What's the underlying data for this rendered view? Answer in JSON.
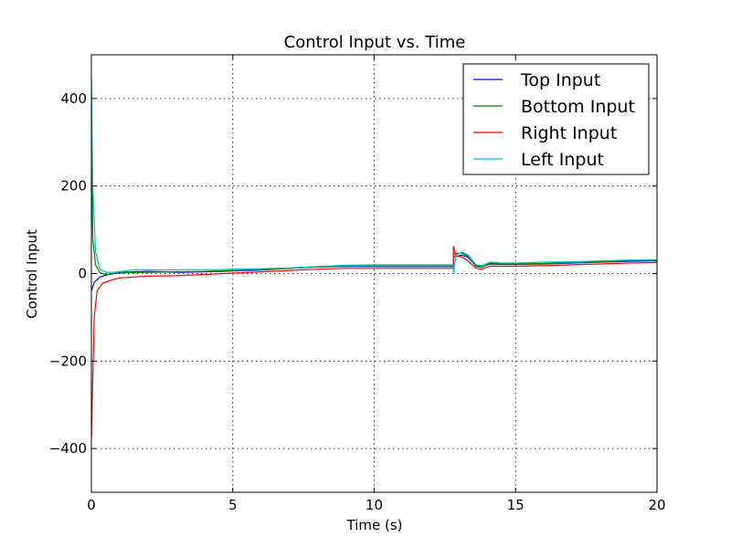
{
  "chart_data": {
    "type": "line",
    "title": "Control Input vs. Time",
    "xlabel": "Time (s)",
    "ylabel": "Control Input",
    "xlim": [
      0,
      20
    ],
    "ylim": [
      -500,
      500
    ],
    "xticks": [
      0,
      5,
      10,
      15,
      20
    ],
    "yticks": [
      -400,
      -200,
      0,
      200,
      400
    ],
    "xtick_labels": [
      "0",
      "5",
      "10",
      "15",
      "20"
    ],
    "ytick_labels": [
      "−400",
      "−200",
      "0",
      "200",
      "400"
    ],
    "grid": true,
    "legend_position": "top-right",
    "series": [
      {
        "name": "Top Input",
        "color": "#0000ff",
        "points": [
          [
            0,
            -40
          ],
          [
            0.1,
            -20
          ],
          [
            0.3,
            -8
          ],
          [
            0.6,
            -2
          ],
          [
            1,
            2
          ],
          [
            1.5,
            4
          ],
          [
            2,
            5
          ],
          [
            3,
            3
          ],
          [
            4,
            4
          ],
          [
            5,
            6
          ],
          [
            6,
            8
          ],
          [
            7,
            12
          ],
          [
            8,
            15
          ],
          [
            9,
            16
          ],
          [
            10,
            16
          ],
          [
            11,
            16
          ],
          [
            12,
            16
          ],
          [
            12.8,
            16
          ],
          [
            12.8,
            38
          ],
          [
            13.1,
            42
          ],
          [
            13.3,
            38
          ],
          [
            13.6,
            18
          ],
          [
            13.8,
            15
          ],
          [
            14.1,
            22
          ],
          [
            14.5,
            21
          ],
          [
            15,
            21
          ],
          [
            16,
            22
          ],
          [
            17,
            24
          ],
          [
            18,
            26
          ],
          [
            19,
            28
          ],
          [
            20,
            29
          ]
        ]
      },
      {
        "name": "Bottom Input",
        "color": "#008000",
        "points": [
          [
            0,
            340
          ],
          [
            0.05,
            80
          ],
          [
            0.15,
            20
          ],
          [
            0.3,
            2
          ],
          [
            0.5,
            -2
          ],
          [
            0.8,
            0
          ],
          [
            1.2,
            2
          ],
          [
            2,
            3
          ],
          [
            3,
            4
          ],
          [
            4,
            5
          ],
          [
            5,
            7
          ],
          [
            6,
            9
          ],
          [
            7,
            12
          ],
          [
            8,
            15
          ],
          [
            9,
            17
          ],
          [
            10,
            17
          ],
          [
            11,
            17
          ],
          [
            12,
            17
          ],
          [
            12.8,
            17
          ],
          [
            12.8,
            45
          ],
          [
            13.1,
            47
          ],
          [
            13.3,
            40
          ],
          [
            13.6,
            16
          ],
          [
            13.8,
            14
          ],
          [
            14.1,
            24
          ],
          [
            14.5,
            22
          ],
          [
            15,
            22
          ],
          [
            16,
            23
          ],
          [
            17,
            25
          ],
          [
            18,
            27
          ],
          [
            19,
            29
          ],
          [
            20,
            30
          ]
        ]
      },
      {
        "name": "Right Input",
        "color": "#ff0000",
        "points": [
          [
            0,
            -380
          ],
          [
            0.1,
            -100
          ],
          [
            0.2,
            -40
          ],
          [
            0.4,
            -22
          ],
          [
            0.7,
            -15
          ],
          [
            1,
            -10
          ],
          [
            1.5,
            -8
          ],
          [
            2,
            -6
          ],
          [
            3,
            -5
          ],
          [
            4,
            -2
          ],
          [
            5,
            1
          ],
          [
            6,
            4
          ],
          [
            7,
            7
          ],
          [
            8,
            10
          ],
          [
            9,
            12
          ],
          [
            10,
            12
          ],
          [
            11,
            12
          ],
          [
            12,
            12
          ],
          [
            12.8,
            12
          ],
          [
            12.8,
            62
          ],
          [
            12.9,
            40
          ],
          [
            13.1,
            38
          ],
          [
            13.3,
            30
          ],
          [
            13.6,
            12
          ],
          [
            13.8,
            10
          ],
          [
            14.1,
            17
          ],
          [
            14.5,
            17
          ],
          [
            15,
            17
          ],
          [
            16,
            18
          ],
          [
            17,
            20
          ],
          [
            18,
            22
          ],
          [
            19,
            24
          ],
          [
            20,
            25
          ]
        ]
      },
      {
        "name": "Left Input",
        "color": "#00bfbf",
        "points": [
          [
            0,
            450
          ],
          [
            0.05,
            200
          ],
          [
            0.15,
            50
          ],
          [
            0.3,
            10
          ],
          [
            0.5,
            3
          ],
          [
            0.8,
            3
          ],
          [
            1.2,
            6
          ],
          [
            1.6,
            9
          ],
          [
            2.5,
            8
          ],
          [
            3.5,
            9
          ],
          [
            4.5,
            9
          ],
          [
            5,
            10
          ],
          [
            6,
            11
          ],
          [
            7,
            13
          ],
          [
            8,
            16
          ],
          [
            9,
            19
          ],
          [
            10,
            20
          ],
          [
            11,
            20
          ],
          [
            12,
            20
          ],
          [
            12.8,
            20
          ],
          [
            12.8,
            0
          ],
          [
            12.9,
            42
          ],
          [
            13.1,
            49
          ],
          [
            13.3,
            44
          ],
          [
            13.6,
            20
          ],
          [
            13.8,
            18
          ],
          [
            14.1,
            26
          ],
          [
            14.5,
            24
          ],
          [
            15,
            24
          ],
          [
            16,
            26
          ],
          [
            17,
            27
          ],
          [
            18,
            29
          ],
          [
            19,
            31
          ],
          [
            20,
            32
          ]
        ]
      }
    ]
  }
}
